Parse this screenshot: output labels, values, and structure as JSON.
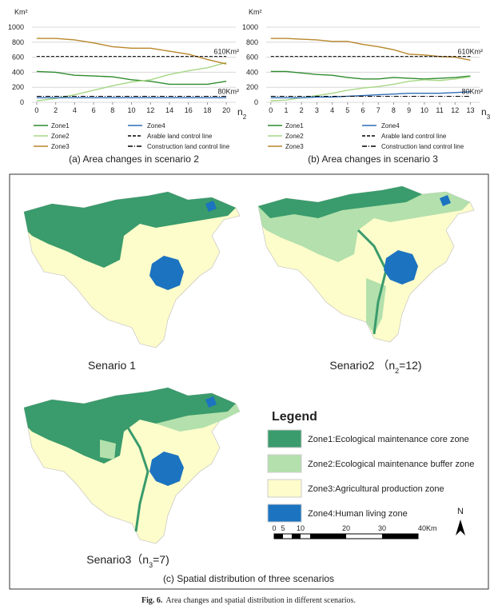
{
  "chart_data": [
    {
      "type": "line",
      "title": "(a) Area changes in scenario 2",
      "ylabel": "Km²",
      "xlabel": "n",
      "xlabel_sub": "2",
      "x": [
        0,
        2,
        4,
        6,
        8,
        10,
        12,
        14,
        16,
        18,
        20
      ],
      "xlim": [
        -0.5,
        21
      ],
      "xticks": [
        0,
        2,
        4,
        6,
        8,
        10,
        12,
        14,
        16,
        18,
        20
      ],
      "ylim": [
        0,
        1000
      ],
      "yticks": [
        0,
        200,
        400,
        600,
        800,
        1000
      ],
      "grid": true,
      "series": [
        {
          "name": "Zone1",
          "color": "#2e8b2e",
          "values": [
            410,
            400,
            360,
            350,
            340,
            300,
            280,
            240,
            240,
            240,
            280
          ]
        },
        {
          "name": "Zone2",
          "color": "#a6d785",
          "values": [
            20,
            50,
            100,
            160,
            220,
            270,
            300,
            370,
            420,
            460,
            530
          ]
        },
        {
          "name": "Zone3",
          "color": "#b8862b",
          "values": [
            850,
            850,
            830,
            790,
            740,
            720,
            720,
            680,
            640,
            570,
            510
          ]
        },
        {
          "name": "Zone4",
          "color": "#2f6db5",
          "values": [
            60,
            60,
            60,
            60,
            60,
            60,
            60,
            60,
            60,
            60,
            60
          ]
        },
        {
          "name": "Arable land control line",
          "color": "#000000",
          "dash": "dashed",
          "values": [
            610,
            610,
            610,
            610,
            610,
            610,
            610,
            610,
            610,
            610,
            610
          ]
        },
        {
          "name": "Construction land control line",
          "color": "#000000",
          "dash": "dashdot",
          "values": [
            80,
            80,
            80,
            80,
            80,
            80,
            80,
            80,
            80,
            80,
            80
          ]
        }
      ],
      "annotations": [
        {
          "text": "610Km²",
          "y": 610
        },
        {
          "text": "80Km²",
          "y": 80
        }
      ]
    },
    {
      "type": "line",
      "title": "(b) Area changes in scenario 3",
      "ylabel": "Km²",
      "xlabel": "n",
      "xlabel_sub": "3",
      "x": [
        0,
        1,
        2,
        3,
        4,
        5,
        6,
        7,
        8,
        9,
        10,
        11,
        12,
        13
      ],
      "xlim": [
        -0.3,
        13.6
      ],
      "xticks": [
        0,
        1,
        2,
        3,
        4,
        5,
        6,
        7,
        8,
        9,
        10,
        11,
        12,
        13
      ],
      "ylim": [
        0,
        1000
      ],
      "yticks": [
        0,
        200,
        400,
        600,
        800,
        1000
      ],
      "grid": true,
      "series": [
        {
          "name": "Zone1",
          "color": "#2e8b2e",
          "values": [
            410,
            410,
            390,
            370,
            360,
            330,
            310,
            310,
            330,
            320,
            310,
            320,
            330,
            350
          ]
        },
        {
          "name": "Zone2",
          "color": "#a6d785",
          "values": [
            20,
            30,
            60,
            90,
            120,
            160,
            190,
            210,
            240,
            280,
            300,
            290,
            310,
            340
          ]
        },
        {
          "name": "Zone3",
          "color": "#b8862b",
          "values": [
            850,
            850,
            840,
            830,
            810,
            810,
            770,
            740,
            700,
            640,
            630,
            610,
            600,
            560
          ]
        },
        {
          "name": "Zone4",
          "color": "#2f6db5",
          "values": [
            60,
            60,
            60,
            70,
            70,
            80,
            90,
            100,
            110,
            120,
            120,
            120,
            130,
            140
          ]
        },
        {
          "name": "Arable land control line",
          "color": "#000000",
          "dash": "dashed",
          "values": [
            610,
            610,
            610,
            610,
            610,
            610,
            610,
            610,
            610,
            610,
            610,
            610,
            610,
            610
          ]
        },
        {
          "name": "Construction land control line",
          "color": "#000000",
          "dash": "dashdot",
          "values": [
            80,
            80,
            80,
            80,
            80,
            80,
            80,
            80,
            80,
            80,
            80,
            80,
            80,
            80
          ]
        }
      ],
      "annotations": [
        {
          "text": "610Km²",
          "y": 610
        },
        {
          "text": "80Km²",
          "y": 80
        }
      ]
    }
  ],
  "maps": [
    {
      "text": "Senario 1"
    },
    {
      "text": "Senario2 （n",
      "sub": "2",
      "after": "=12)"
    },
    {
      "text": "Senario3（n",
      "sub": "3",
      "after": "=7)"
    }
  ],
  "legend": {
    "title": "Legend",
    "items": [
      {
        "label": "Zone1:Ecological maintenance core zone",
        "color": "#3a9b6c"
      },
      {
        "label": "Zone2:Ecological maintenance buffer zone",
        "color": "#b3e0ac"
      },
      {
        "label": "Zone3:Agricultural production zone",
        "color": "#fdfccb"
      },
      {
        "label": "Zone4:Human living zone",
        "color": "#1c73c0"
      }
    ]
  },
  "scale_labels": [
    "0",
    "5",
    "10",
    "20",
    "30",
    "40Km"
  ],
  "north": "N",
  "panel_caption": "(c) Spatial distribution of three scenarios",
  "caption": {
    "label": "Fig. 6.",
    "text": "Area changes and spatial distribution in different scenarios."
  }
}
